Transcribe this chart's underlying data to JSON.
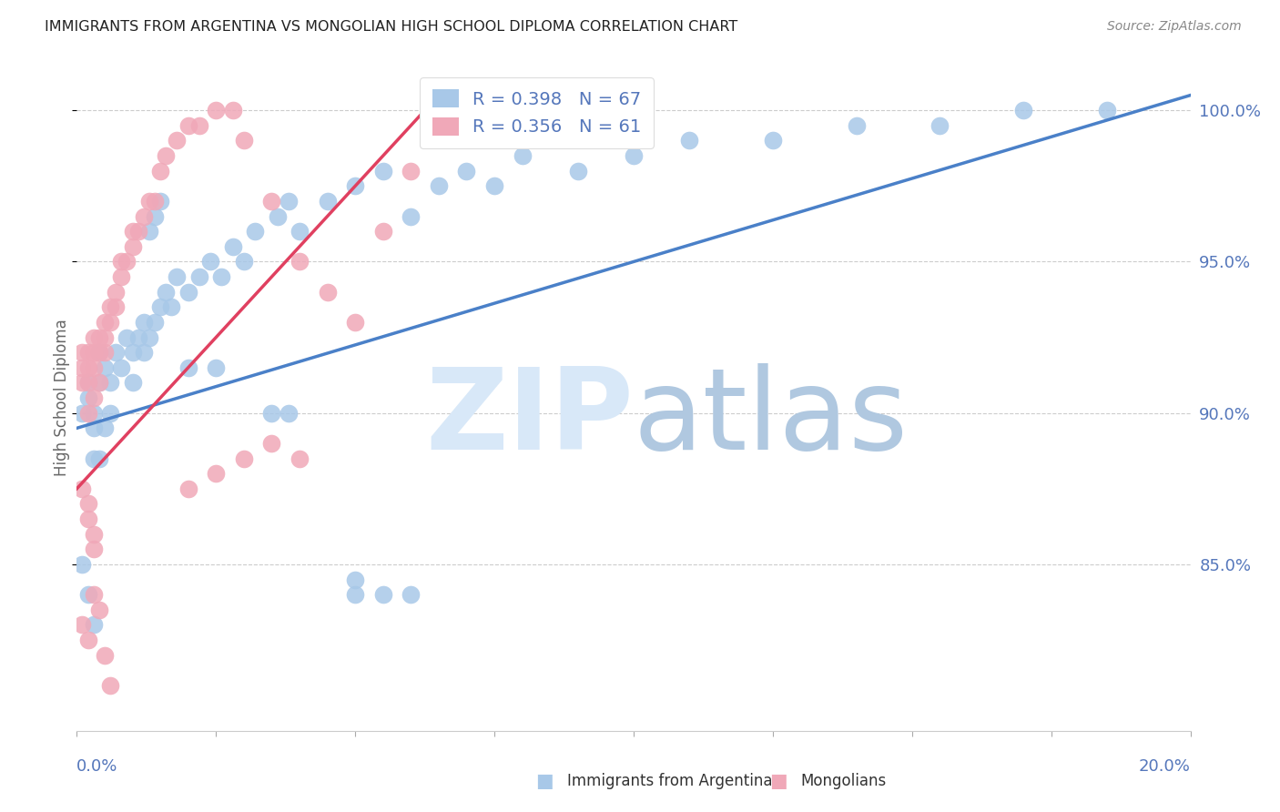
{
  "title": "IMMIGRANTS FROM ARGENTINA VS MONGOLIAN HIGH SCHOOL DIPLOMA CORRELATION CHART",
  "source": "Source: ZipAtlas.com",
  "ylabel": "High School Diploma",
  "legend_label_blue": "Immigrants from Argentina",
  "legend_label_pink": "Mongolians",
  "blue_color": "#a8c8e8",
  "pink_color": "#f0a8b8",
  "blue_line_color": "#4a80c8",
  "pink_line_color": "#e04060",
  "watermark_zip_color": "#d8e8f8",
  "watermark_atlas_color": "#b0c8e0",
  "title_color": "#222222",
  "source_color": "#888888",
  "axis_label_color": "#5577bb",
  "ytick_color": "#5577bb",
  "grid_color": "#cccccc",
  "background_color": "#ffffff",
  "xmin": 0.0,
  "xmax": 0.2,
  "ymin": 0.795,
  "ymax": 1.015,
  "yticks": [
    0.85,
    0.9,
    0.95,
    1.0
  ],
  "ytick_labels": [
    "85.0%",
    "90.0%",
    "95.0%",
    "100.0%"
  ],
  "blue_trend_x": [
    0.0,
    0.2
  ],
  "blue_trend_y": [
    0.895,
    1.005
  ],
  "pink_trend_x": [
    0.0,
    0.065
  ],
  "pink_trend_y": [
    0.875,
    1.005
  ],
  "blue_x": [
    0.001,
    0.002,
    0.002,
    0.003,
    0.003,
    0.004,
    0.004,
    0.005,
    0.005,
    0.006,
    0.006,
    0.007,
    0.008,
    0.009,
    0.01,
    0.01,
    0.011,
    0.012,
    0.013,
    0.014,
    0.015,
    0.016,
    0.017,
    0.018,
    0.02,
    0.022,
    0.024,
    0.026,
    0.028,
    0.03,
    0.032,
    0.036,
    0.038,
    0.04,
    0.045,
    0.05,
    0.055,
    0.06,
    0.065,
    0.07,
    0.075,
    0.08,
    0.09,
    0.1,
    0.11,
    0.125,
    0.14,
    0.155,
    0.17,
    0.185,
    0.001,
    0.002,
    0.003,
    0.05,
    0.055,
    0.06,
    0.035,
    0.038,
    0.003,
    0.004,
    0.02,
    0.025,
    0.012,
    0.013,
    0.014,
    0.015,
    0.05
  ],
  "blue_y": [
    0.9,
    0.905,
    0.91,
    0.895,
    0.9,
    0.91,
    0.92,
    0.895,
    0.915,
    0.9,
    0.91,
    0.92,
    0.915,
    0.925,
    0.91,
    0.92,
    0.925,
    0.93,
    0.925,
    0.93,
    0.935,
    0.94,
    0.935,
    0.945,
    0.94,
    0.945,
    0.95,
    0.945,
    0.955,
    0.95,
    0.96,
    0.965,
    0.97,
    0.96,
    0.97,
    0.975,
    0.98,
    0.965,
    0.975,
    0.98,
    0.975,
    0.985,
    0.98,
    0.985,
    0.99,
    0.99,
    0.995,
    0.995,
    1.0,
    1.0,
    0.85,
    0.84,
    0.83,
    0.845,
    0.84,
    0.84,
    0.9,
    0.9,
    0.885,
    0.885,
    0.915,
    0.915,
    0.92,
    0.96,
    0.965,
    0.97,
    0.84
  ],
  "pink_x": [
    0.001,
    0.001,
    0.001,
    0.002,
    0.002,
    0.002,
    0.002,
    0.003,
    0.003,
    0.003,
    0.003,
    0.004,
    0.004,
    0.004,
    0.005,
    0.005,
    0.005,
    0.006,
    0.006,
    0.007,
    0.007,
    0.008,
    0.008,
    0.009,
    0.01,
    0.01,
    0.011,
    0.012,
    0.013,
    0.014,
    0.015,
    0.016,
    0.018,
    0.02,
    0.022,
    0.025,
    0.028,
    0.03,
    0.035,
    0.04,
    0.045,
    0.05,
    0.055,
    0.06,
    0.065,
    0.001,
    0.002,
    0.002,
    0.003,
    0.003,
    0.001,
    0.002,
    0.003,
    0.004,
    0.005,
    0.006,
    0.03,
    0.035,
    0.02,
    0.025,
    0.04
  ],
  "pink_y": [
    0.91,
    0.915,
    0.92,
    0.9,
    0.91,
    0.915,
    0.92,
    0.905,
    0.915,
    0.92,
    0.925,
    0.91,
    0.92,
    0.925,
    0.92,
    0.925,
    0.93,
    0.93,
    0.935,
    0.935,
    0.94,
    0.945,
    0.95,
    0.95,
    0.955,
    0.96,
    0.96,
    0.965,
    0.97,
    0.97,
    0.98,
    0.985,
    0.99,
    0.995,
    0.995,
    1.0,
    1.0,
    0.99,
    0.97,
    0.95,
    0.94,
    0.93,
    0.96,
    0.98,
    1.0,
    0.875,
    0.865,
    0.87,
    0.855,
    0.86,
    0.83,
    0.825,
    0.84,
    0.835,
    0.82,
    0.81,
    0.885,
    0.89,
    0.875,
    0.88,
    0.885
  ]
}
